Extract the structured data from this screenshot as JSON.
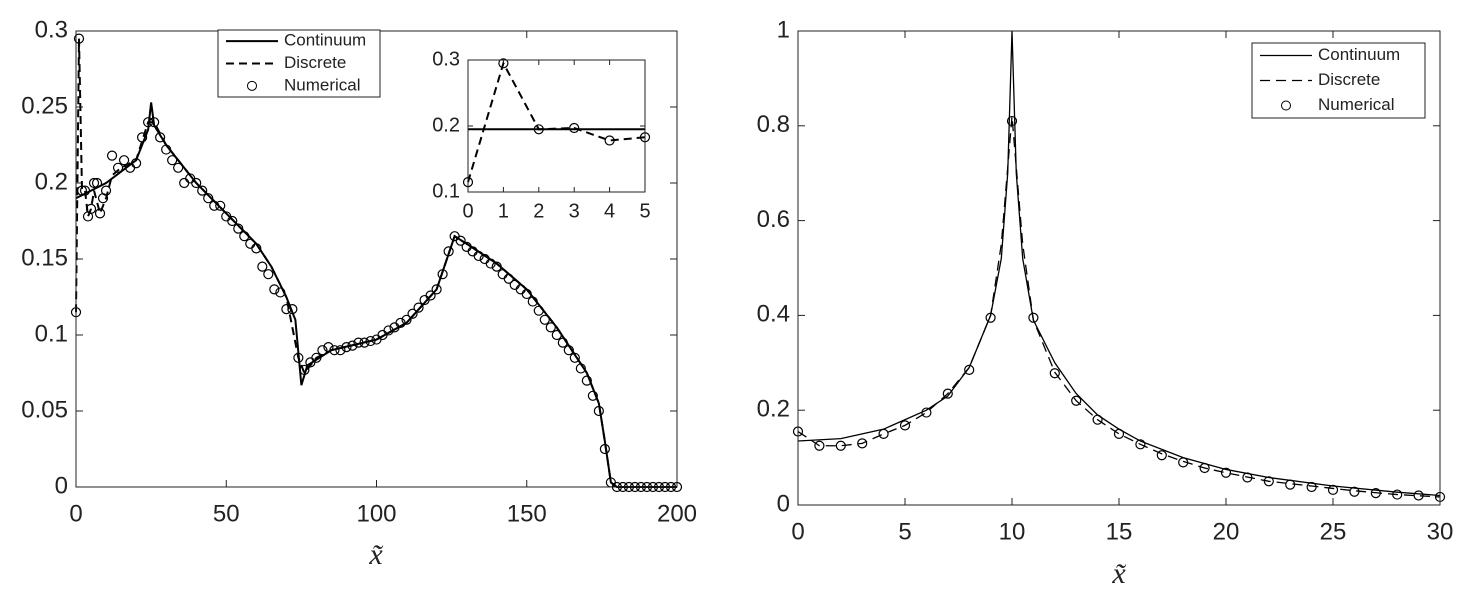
{
  "chart_data": [
    {
      "type": "line",
      "xlabel": "x̃",
      "xlim": [
        0,
        200
      ],
      "ylim": [
        0,
        0.3
      ],
      "xticks": [
        0,
        50,
        100,
        150,
        200
      ],
      "yticks": [
        0,
        0.05,
        0.1,
        0.15,
        0.2,
        0.25,
        0.3
      ],
      "legend": "north",
      "series": [
        {
          "name": "Continuum",
          "color": "#000000",
          "style": "solid",
          "x": [
            0,
            5,
            10,
            20,
            24,
            25,
            26,
            30,
            40,
            50,
            60,
            65,
            70,
            73,
            75,
            77,
            85,
            100,
            110,
            120,
            126,
            130,
            140,
            150,
            160,
            170,
            174,
            176,
            178,
            180,
            200
          ],
          "values": [
            0.19,
            0.195,
            0.2,
            0.215,
            0.235,
            0.253,
            0.238,
            0.225,
            0.2,
            0.18,
            0.16,
            0.145,
            0.125,
            0.11,
            0.067,
            0.08,
            0.09,
            0.097,
            0.108,
            0.13,
            0.165,
            0.16,
            0.147,
            0.13,
            0.105,
            0.075,
            0.055,
            0.03,
            0.003,
            0,
            0
          ]
        },
        {
          "name": "Discrete",
          "color": "#000000",
          "style": "dashed",
          "x": [
            0,
            1,
            2,
            3,
            4,
            5,
            6,
            8,
            10,
            12,
            15,
            20,
            24,
            26,
            30,
            40,
            50,
            60,
            65,
            70,
            74,
            76,
            80,
            85,
            100,
            110,
            120,
            126,
            130,
            140,
            150,
            160,
            170,
            174,
            176,
            178,
            180,
            200
          ],
          "values": [
            0.115,
            0.295,
            0.195,
            0.195,
            0.178,
            0.183,
            0.195,
            0.18,
            0.19,
            0.205,
            0.21,
            0.215,
            0.24,
            0.24,
            0.225,
            0.2,
            0.18,
            0.16,
            0.145,
            0.125,
            0.085,
            0.075,
            0.085,
            0.09,
            0.097,
            0.108,
            0.13,
            0.165,
            0.16,
            0.147,
            0.13,
            0.105,
            0.075,
            0.055,
            0.03,
            0.003,
            0,
            0
          ]
        },
        {
          "name": "Numerical",
          "color": "#000000",
          "style": "markers",
          "x": [
            0,
            1,
            2,
            3,
            4,
            5,
            6,
            7,
            8,
            9,
            10,
            12,
            14,
            16,
            18,
            20,
            22,
            24,
            26,
            28,
            30,
            32,
            34,
            36,
            38,
            40,
            42,
            44,
            46,
            48,
            50,
            52,
            54,
            56,
            58,
            60,
            62,
            64,
            66,
            68,
            70,
            72,
            74,
            76,
            78,
            80,
            82,
            84,
            86,
            88,
            90,
            92,
            94,
            96,
            98,
            100,
            102,
            104,
            106,
            108,
            110,
            112,
            114,
            116,
            118,
            120,
            122,
            124,
            126,
            128,
            130,
            132,
            134,
            136,
            138,
            140,
            142,
            144,
            146,
            148,
            150,
            152,
            154,
            156,
            158,
            160,
            162,
            164,
            166,
            168,
            170,
            172,
            174,
            176,
            178,
            180,
            182,
            184,
            186,
            188,
            190,
            192,
            194,
            196,
            198,
            200
          ],
          "values": [
            0.115,
            0.295,
            0.195,
            0.195,
            0.178,
            0.183,
            0.2,
            0.2,
            0.18,
            0.19,
            0.195,
            0.218,
            0.21,
            0.215,
            0.21,
            0.213,
            0.23,
            0.24,
            0.24,
            0.23,
            0.222,
            0.215,
            0.21,
            0.2,
            0.203,
            0.2,
            0.195,
            0.19,
            0.185,
            0.185,
            0.178,
            0.175,
            0.17,
            0.165,
            0.16,
            0.157,
            0.145,
            0.14,
            0.13,
            0.128,
            0.117,
            0.117,
            0.085,
            0.077,
            0.082,
            0.085,
            0.09,
            0.092,
            0.09,
            0.09,
            0.092,
            0.093,
            0.095,
            0.095,
            0.096,
            0.097,
            0.1,
            0.103,
            0.105,
            0.108,
            0.11,
            0.114,
            0.118,
            0.123,
            0.126,
            0.13,
            0.14,
            0.155,
            0.165,
            0.162,
            0.158,
            0.155,
            0.152,
            0.15,
            0.147,
            0.145,
            0.14,
            0.137,
            0.133,
            0.13,
            0.127,
            0.122,
            0.116,
            0.11,
            0.105,
            0.1,
            0.095,
            0.09,
            0.085,
            0.078,
            0.07,
            0.06,
            0.05,
            0.025,
            0.003,
            0,
            0,
            0,
            0,
            0,
            0,
            0,
            0,
            0,
            0,
            0
          ]
        }
      ]
    },
    {
      "type": "line",
      "xlim": [
        0,
        5
      ],
      "ylim": [
        0.1,
        0.3
      ],
      "xticks": [
        0,
        1,
        2,
        3,
        4,
        5
      ],
      "yticks": [
        0.1,
        0.2,
        0.3
      ],
      "series": [
        {
          "color": "#000000",
          "style": "solid",
          "x": [
            0,
            5
          ],
          "values": [
            0.195,
            0.195
          ]
        },
        {
          "color": "#000000",
          "style": "dashed",
          "x": [
            0,
            1,
            2,
            3,
            4,
            5
          ],
          "values": [
            0.115,
            0.295,
            0.195,
            0.197,
            0.178,
            0.183
          ]
        },
        {
          "color": "#000000",
          "style": "markers",
          "x": [
            0,
            1,
            2,
            3,
            4,
            5
          ],
          "values": [
            0.115,
            0.295,
            0.195,
            0.197,
            0.178,
            0.183
          ]
        }
      ]
    },
    {
      "type": "line",
      "xlabel": "x̃",
      "xlim": [
        0,
        30
      ],
      "ylim": [
        0,
        1
      ],
      "xticks": [
        0,
        5,
        10,
        15,
        20,
        25,
        30
      ],
      "yticks": [
        0,
        0.2,
        0.4,
        0.6,
        0.8,
        1
      ],
      "legend": "northeast",
      "series": [
        {
          "name": "Continuum",
          "color": "#000000",
          "style": "solid",
          "x": [
            0,
            2,
            4,
            6,
            7,
            8,
            9,
            9.5,
            9.8,
            10,
            10.2,
            10.5,
            11,
            12,
            13,
            14,
            15,
            16,
            18,
            20,
            22,
            25,
            28,
            30
          ],
          "values": [
            0.135,
            0.14,
            0.16,
            0.2,
            0.23,
            0.29,
            0.4,
            0.52,
            0.7,
            1,
            0.7,
            0.52,
            0.39,
            0.3,
            0.235,
            0.19,
            0.16,
            0.135,
            0.1,
            0.075,
            0.058,
            0.04,
            0.027,
            0.02
          ]
        },
        {
          "name": "Discrete",
          "color": "#000000",
          "style": "dashed",
          "x": [
            0,
            1,
            2,
            3,
            4,
            5,
            6,
            7,
            8,
            9,
            9.5,
            10,
            10.5,
            11,
            12,
            13,
            14,
            15,
            16,
            17,
            18,
            19,
            20,
            22,
            24,
            26,
            28,
            30
          ],
          "values": [
            0.155,
            0.125,
            0.125,
            0.13,
            0.15,
            0.168,
            0.195,
            0.235,
            0.29,
            0.4,
            0.55,
            0.82,
            0.55,
            0.39,
            0.28,
            0.22,
            0.18,
            0.15,
            0.128,
            0.108,
            0.092,
            0.078,
            0.068,
            0.05,
            0.04,
            0.03,
            0.022,
            0.017
          ]
        },
        {
          "name": "Numerical",
          "color": "#000000",
          "style": "markers",
          "x": [
            0,
            1,
            2,
            3,
            4,
            5,
            6,
            7,
            8,
            9,
            10,
            11,
            12,
            13,
            14,
            15,
            16,
            17,
            18,
            19,
            20,
            21,
            22,
            23,
            24,
            25,
            26,
            27,
            28,
            29,
            30
          ],
          "values": [
            0.155,
            0.125,
            0.125,
            0.13,
            0.15,
            0.168,
            0.195,
            0.235,
            0.285,
            0.395,
            0.81,
            0.395,
            0.278,
            0.22,
            0.18,
            0.15,
            0.128,
            0.105,
            0.09,
            0.078,
            0.068,
            0.058,
            0.05,
            0.043,
            0.038,
            0.032,
            0.028,
            0.025,
            0.022,
            0.02,
            0.017
          ]
        }
      ]
    }
  ]
}
